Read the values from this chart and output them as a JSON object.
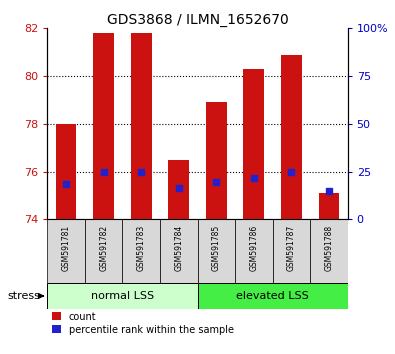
{
  "title": "GDS3868 / ILMN_1652670",
  "samples": [
    "GSM591781",
    "GSM591782",
    "GSM591783",
    "GSM591784",
    "GSM591785",
    "GSM591786",
    "GSM591787",
    "GSM591788"
  ],
  "bar_tops": [
    78.0,
    81.8,
    81.8,
    76.5,
    78.9,
    80.3,
    80.9,
    75.1
  ],
  "bar_bottom": 74.0,
  "percentile_values": [
    75.5,
    76.0,
    76.0,
    75.3,
    75.55,
    75.75,
    76.0,
    75.2
  ],
  "ylim_left": [
    74,
    82
  ],
  "ylim_right": [
    0,
    100
  ],
  "yticks_left": [
    74,
    76,
    78,
    80,
    82
  ],
  "yticks_right": [
    0,
    25,
    50,
    75,
    100
  ],
  "ytick_labels_right": [
    "0",
    "25",
    "50",
    "75",
    "100%"
  ],
  "bar_color": "#cc1111",
  "percentile_color": "#2222cc",
  "group1_label": "normal LSS",
  "group2_label": "elevated LSS",
  "group1_indices": [
    0,
    1,
    2,
    3
  ],
  "group2_indices": [
    4,
    5,
    6,
    7
  ],
  "group1_color": "#ccffcc",
  "group2_color": "#44ee44",
  "stress_label": "stress",
  "legend_count": "count",
  "legend_pct": "percentile rank within the sample",
  "bg_color": "#ffffff",
  "bar_width": 0.55,
  "tick_color_left": "#cc1111",
  "tick_color_right": "#0000cc",
  "sample_bg_color": "#d8d8d8"
}
